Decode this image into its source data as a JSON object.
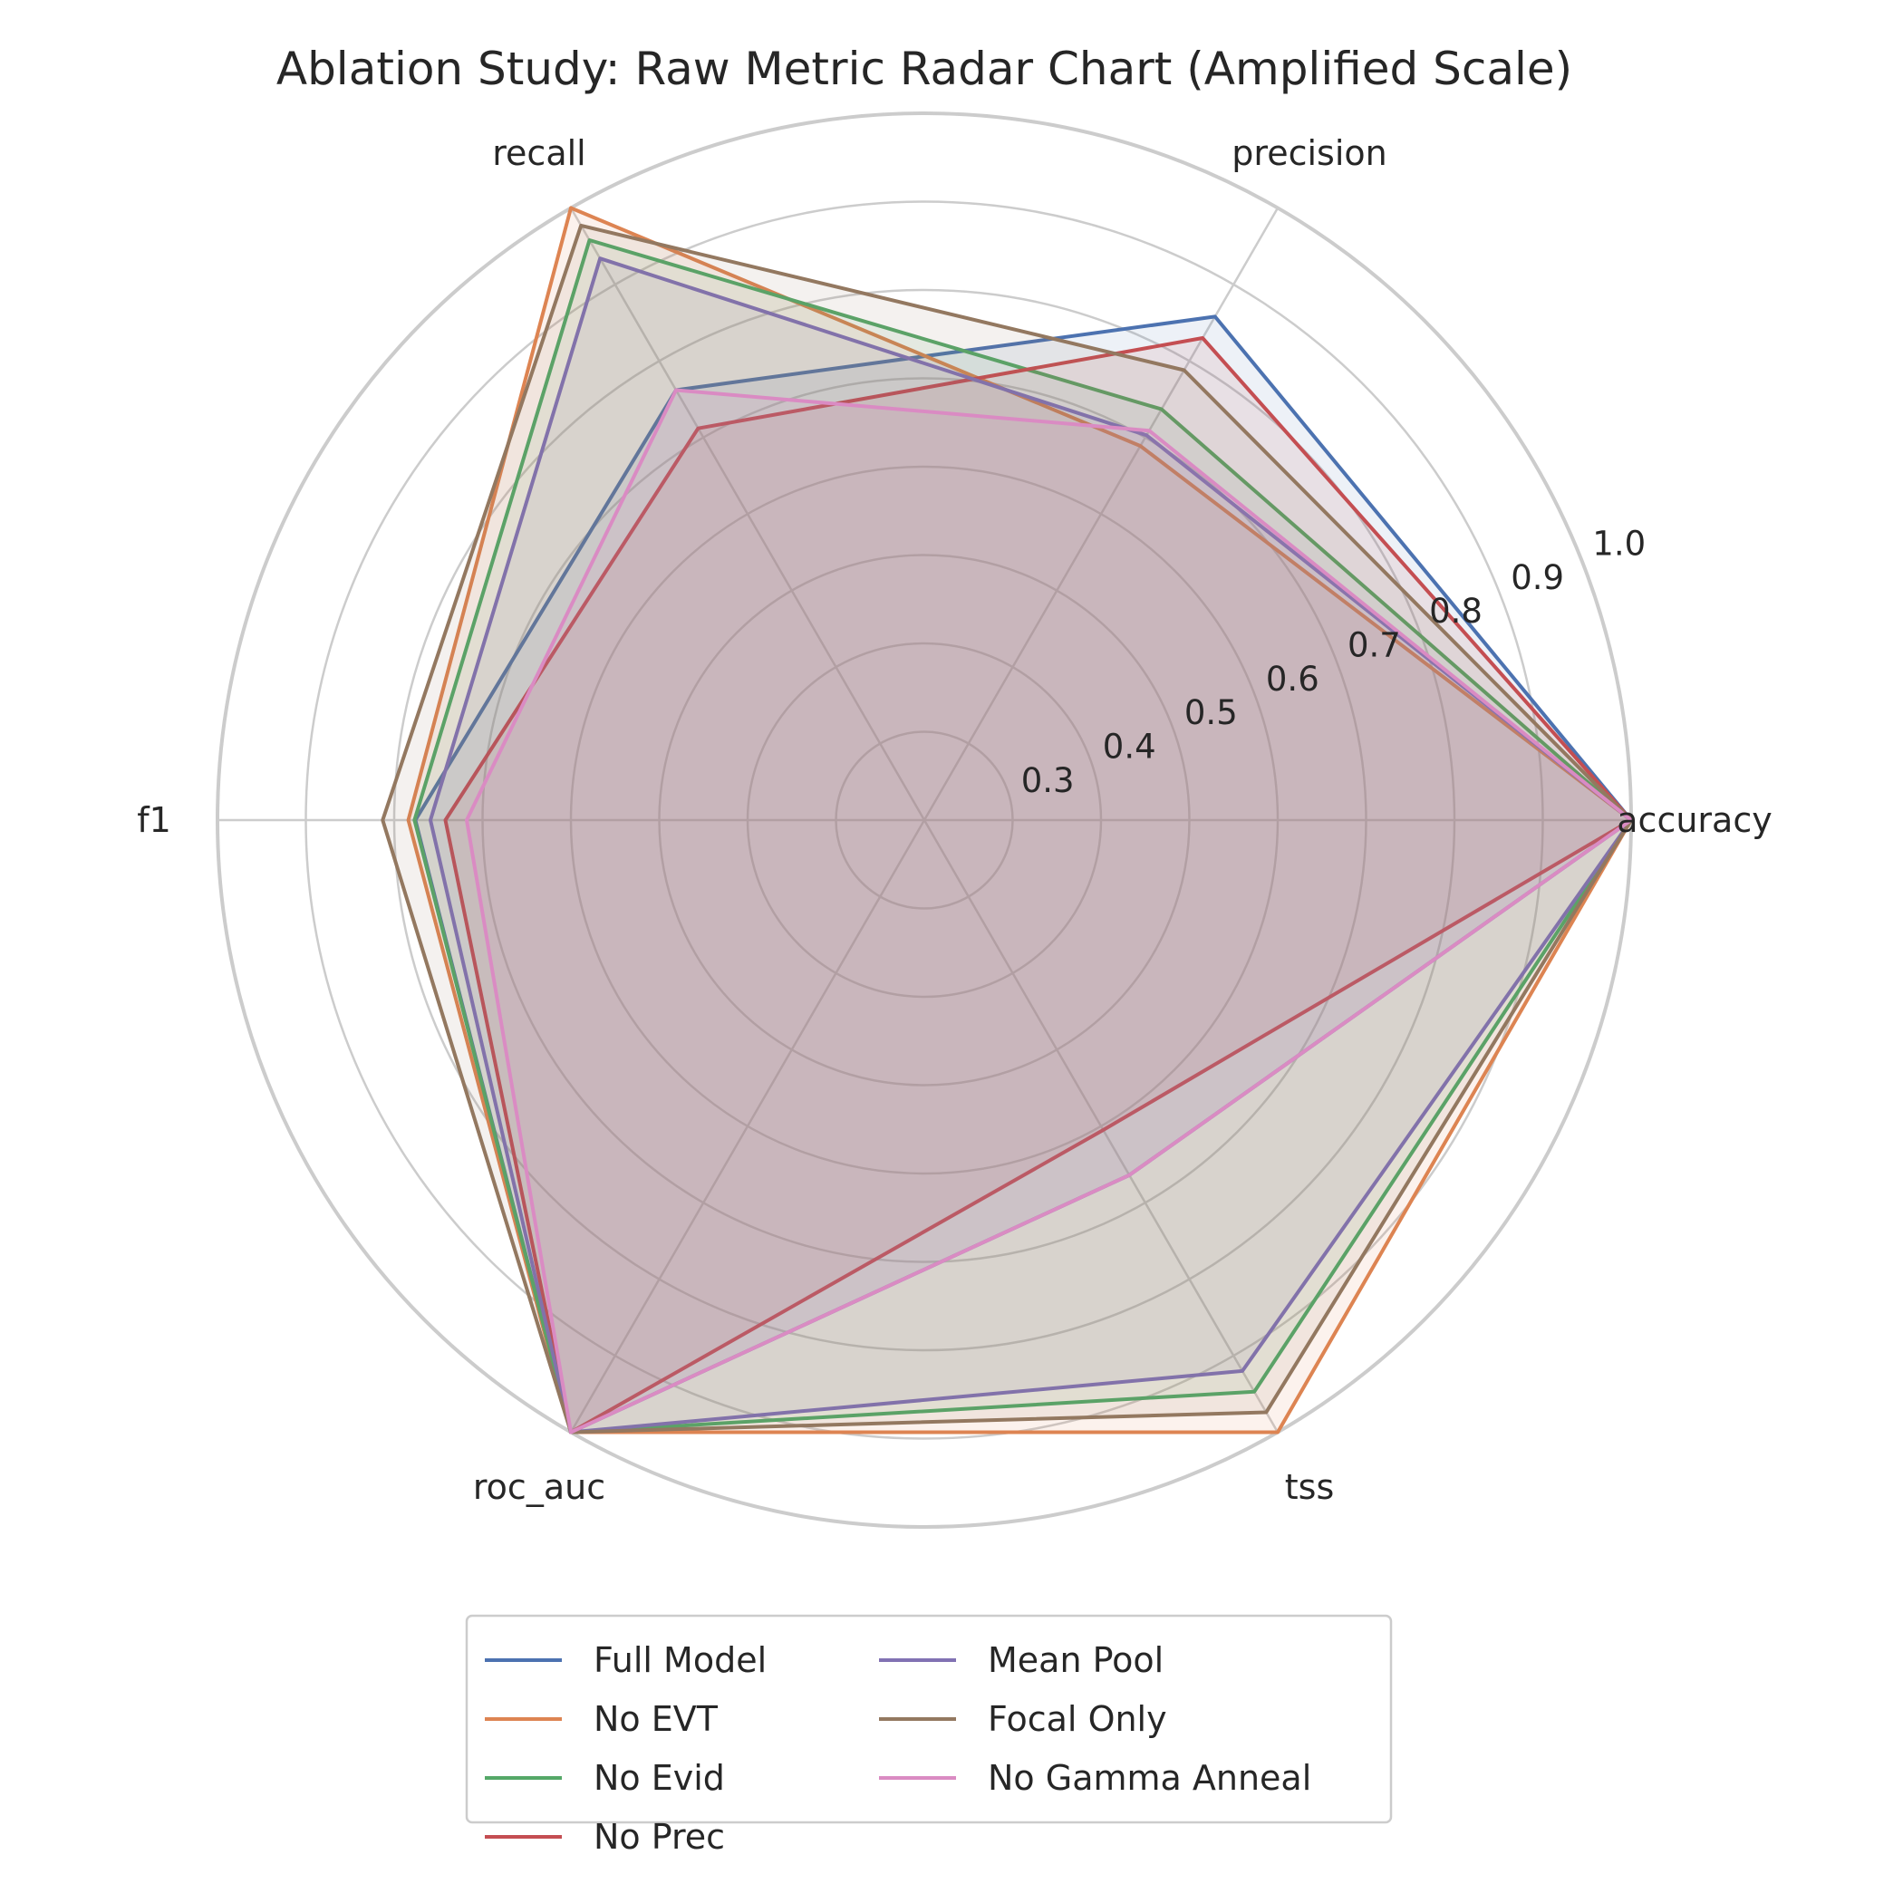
{
  "chart_data": {
    "type": "radar",
    "title": "Ablation Study: Raw Metric Radar Chart (Amplified Scale)",
    "axes": [
      "accuracy",
      "precision",
      "recall",
      "f1",
      "roc_auc",
      "tss"
    ],
    "rlim": [
      0.2,
      1.0
    ],
    "r_ticks": [
      0.3,
      0.4,
      0.5,
      0.6,
      0.7,
      0.8,
      0.9,
      1.0
    ],
    "r_tick_labels": [
      "0.3",
      "0.4",
      "0.5",
      "0.6",
      "0.7",
      "0.8",
      "0.9",
      "1.0"
    ],
    "grid": true,
    "legend_position": "bottom-center",
    "legend_columns": 2,
    "series": [
      {
        "name": "Full Model",
        "color": "#4c72b0",
        "values": [
          1.0,
          0.858,
          0.762,
          0.776,
          1.0,
          0.664
        ]
      },
      {
        "name": "No EVT",
        "color": "#dd8452",
        "values": [
          1.0,
          0.689,
          1.0,
          0.784,
          1.0,
          1.0
        ]
      },
      {
        "name": "No Evid",
        "color": "#55a868",
        "values": [
          1.0,
          0.737,
          0.958,
          0.777,
          1.0,
          0.947
        ]
      },
      {
        "name": "No Prec",
        "color": "#c44e52",
        "values": [
          1.0,
          0.83,
          0.712,
          0.742,
          1.0,
          0.605
        ]
      },
      {
        "name": "Mean Pool",
        "color": "#8172b3",
        "values": [
          1.0,
          0.703,
          0.934,
          0.759,
          1.0,
          0.92
        ]
      },
      {
        "name": "Focal Only",
        "color": "#937860",
        "values": [
          1.0,
          0.788,
          0.977,
          0.813,
          1.0,
          0.974
        ]
      },
      {
        "name": "No Gamma Anneal",
        "color": "#da8bc3",
        "values": [
          1.0,
          0.709,
          0.762,
          0.718,
          1.0,
          0.664
        ]
      }
    ]
  }
}
